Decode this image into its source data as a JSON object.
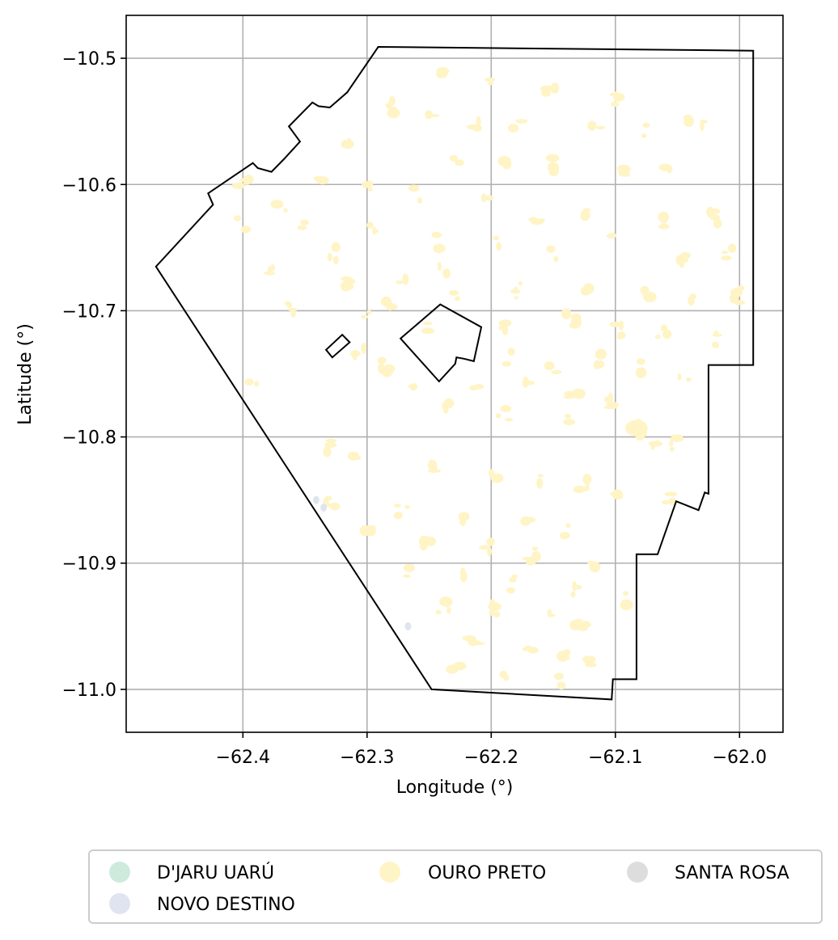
{
  "chart_data": {
    "type": "map",
    "xlabel": "Longitude (°)",
    "ylabel": "Latitude (°)",
    "xlim": [
      -62.494,
      -61.965
    ],
    "ylim": [
      -11.034,
      -10.466
    ],
    "x_ticks": [
      -62.4,
      -62.3,
      -62.2,
      -62.1,
      -62.0
    ],
    "x_tick_labels": [
      "−62.4",
      "−62.3",
      "−62.2",
      "−62.1",
      "−62.0"
    ],
    "y_ticks": [
      -10.5,
      -10.6,
      -10.7,
      -10.8,
      -10.9,
      -11.0
    ],
    "y_tick_labels": [
      "−10.5",
      "−10.6",
      "−10.7",
      "−10.8",
      "−10.9",
      "−11.0"
    ],
    "grid": true,
    "legend_placement": "bottom-center, below plot",
    "legend": [
      {
        "label": "D'JARU UARÚ",
        "color": "#cdebdc"
      },
      {
        "label": "NOVO DESTINO",
        "color": "#dfe4f0"
      },
      {
        "label": "OURO PRETO",
        "color": "#fff4c5"
      },
      {
        "label": "SANTA ROSA",
        "color": "#dddddd"
      }
    ],
    "boundary_outer": [
      [
        -62.291,
        -10.491
      ],
      [
        -61.989,
        -10.494
      ],
      [
        -61.989,
        -10.743
      ],
      [
        -62.025,
        -10.743
      ],
      [
        -62.025,
        -10.845
      ],
      [
        -62.028,
        -10.844
      ],
      [
        -62.033,
        -10.858
      ],
      [
        -62.051,
        -10.851
      ],
      [
        -62.066,
        -10.893
      ],
      [
        -62.083,
        -10.893
      ],
      [
        -62.083,
        -10.992
      ],
      [
        -62.102,
        -10.992
      ],
      [
        -62.103,
        -11.008
      ],
      [
        -62.248,
        -11.0
      ],
      [
        -62.47,
        -10.665
      ],
      [
        -62.424,
        -10.616
      ],
      [
        -62.428,
        -10.607
      ],
      [
        -62.392,
        -10.583
      ],
      [
        -62.388,
        -10.587
      ],
      [
        -62.377,
        -10.59
      ],
      [
        -62.367,
        -10.58
      ],
      [
        -62.354,
        -10.566
      ],
      [
        -62.363,
        -10.554
      ],
      [
        -62.344,
        -10.535
      ],
      [
        -62.339,
        -10.538
      ],
      [
        -62.33,
        -10.539
      ],
      [
        -62.316,
        -10.527
      ]
    ],
    "boundary_holes": [
      [
        [
          -62.273,
          -10.722
        ],
        [
          -62.241,
          -10.695
        ],
        [
          -62.208,
          -10.713
        ],
        [
          -62.214,
          -10.74
        ],
        [
          -62.222,
          -10.738
        ],
        [
          -62.228,
          -10.737
        ],
        [
          -62.229,
          -10.742
        ],
        [
          -62.242,
          -10.756
        ]
      ],
      [
        [
          -62.333,
          -10.731
        ],
        [
          -62.32,
          -10.719
        ],
        [
          -62.314,
          -10.725
        ],
        [
          -62.328,
          -10.737
        ]
      ]
    ],
    "ouro_preto_patches": [
      [
        -62.239,
        -10.515
      ],
      [
        -62.201,
        -10.52
      ],
      [
        -62.153,
        -10.528
      ],
      [
        -62.098,
        -10.532
      ],
      [
        -62.04,
        -10.548
      ],
      [
        -62.282,
        -10.538
      ],
      [
        -62.249,
        -10.548
      ],
      [
        -62.211,
        -10.551
      ],
      [
        -62.179,
        -10.553
      ],
      [
        -62.115,
        -10.559
      ],
      [
        -62.075,
        -10.558
      ],
      [
        -62.03,
        -10.555
      ],
      [
        -62.318,
        -10.57
      ],
      [
        -62.226,
        -10.578
      ],
      [
        -62.191,
        -10.582
      ],
      [
        -62.15,
        -10.584
      ],
      [
        -62.092,
        -10.588
      ],
      [
        -62.058,
        -10.592
      ],
      [
        -62.338,
        -10.599
      ],
      [
        -62.301,
        -10.603
      ],
      [
        -62.258,
        -10.608
      ],
      [
        -62.205,
        -10.616
      ],
      [
        -62.164,
        -10.625
      ],
      [
        -62.121,
        -10.622
      ],
      [
        -62.062,
        -10.63
      ],
      [
        -62.02,
        -10.626
      ],
      [
        -62.402,
        -10.632
      ],
      [
        -62.35,
        -10.634
      ],
      [
        -62.294,
        -10.637
      ],
      [
        -62.245,
        -10.645
      ],
      [
        -62.198,
        -10.648
      ],
      [
        -62.148,
        -10.654
      ],
      [
        -62.101,
        -10.645
      ],
      [
        -62.046,
        -10.659
      ],
      [
        -62.008,
        -10.655
      ],
      [
        -62.378,
        -10.668
      ],
      [
        -62.316,
        -10.676
      ],
      [
        -62.27,
        -10.678
      ],
      [
        -62.238,
        -10.669
      ],
      [
        -62.178,
        -10.684
      ],
      [
        -62.122,
        -10.68
      ],
      [
        -62.073,
        -10.686
      ],
      [
        -62.036,
        -10.69
      ],
      [
        -62.003,
        -10.688
      ],
      [
        -62.362,
        -10.697
      ],
      [
        -62.3,
        -10.705
      ],
      [
        -62.252,
        -10.712
      ],
      [
        -62.19,
        -10.714
      ],
      [
        -62.135,
        -10.707
      ],
      [
        -62.098,
        -10.716
      ],
      [
        -62.062,
        -10.718
      ],
      [
        -62.017,
        -10.722
      ],
      [
        -62.306,
        -10.733
      ],
      [
        -62.285,
        -10.743
      ],
      [
        -62.186,
        -10.738
      ],
      [
        -62.15,
        -10.746
      ],
      [
        -62.112,
        -10.739
      ],
      [
        -62.079,
        -10.744
      ],
      [
        -62.044,
        -10.749
      ],
      [
        -62.393,
        -10.755
      ],
      [
        -62.21,
        -10.758
      ],
      [
        -62.168,
        -10.76
      ],
      [
        -62.134,
        -10.766
      ],
      [
        -62.104,
        -10.772
      ],
      [
        -62.238,
        -10.778
      ],
      [
        -62.19,
        -10.782
      ],
      [
        -62.141,
        -10.784
      ],
      [
        -62.08,
        -10.795
      ],
      [
        -62.07,
        -10.802
      ],
      [
        -62.052,
        -10.805
      ],
      [
        -62.333,
        -10.806
      ],
      [
        -62.308,
        -10.812
      ],
      [
        -62.248,
        -10.822
      ],
      [
        -62.196,
        -10.829
      ],
      [
        -62.157,
        -10.833
      ],
      [
        -62.127,
        -10.838
      ],
      [
        -62.096,
        -10.842
      ],
      [
        -62.058,
        -10.848
      ],
      [
        -62.329,
        -10.854
      ],
      [
        -62.272,
        -10.858
      ],
      [
        -62.226,
        -10.862
      ],
      [
        -62.174,
        -10.866
      ],
      [
        -62.138,
        -10.875
      ],
      [
        -62.298,
        -10.878
      ],
      [
        -62.25,
        -10.883
      ],
      [
        -62.204,
        -10.886
      ],
      [
        -62.166,
        -10.893
      ],
      [
        -62.117,
        -10.898
      ],
      [
        -62.269,
        -10.906
      ],
      [
        -62.22,
        -10.91
      ],
      [
        -62.18,
        -10.916
      ],
      [
        -62.135,
        -10.923
      ],
      [
        -62.089,
        -10.928
      ],
      [
        -62.238,
        -10.935
      ],
      [
        -62.195,
        -10.938
      ],
      [
        -62.153,
        -10.942
      ],
      [
        -62.128,
        -10.95
      ],
      [
        -62.214,
        -10.965
      ],
      [
        -62.17,
        -10.97
      ],
      [
        -62.142,
        -10.975
      ],
      [
        -62.12,
        -10.98
      ],
      [
        -62.228,
        -10.985
      ],
      [
        -62.188,
        -10.99
      ],
      [
        -62.148,
        -10.992
      ],
      [
        -62.262,
        -10.76
      ],
      [
        -62.4,
        -10.6
      ],
      [
        -62.37,
        -10.62
      ],
      [
        -62.326,
        -10.655
      ],
      [
        -62.281,
        -10.697
      ],
      [
        -62.23,
        -10.69
      ]
    ],
    "novo_destino_patches": [
      [
        -62.341,
        -10.85
      ],
      [
        -62.335,
        -10.856
      ],
      [
        -62.267,
        -10.95
      ]
    ]
  }
}
